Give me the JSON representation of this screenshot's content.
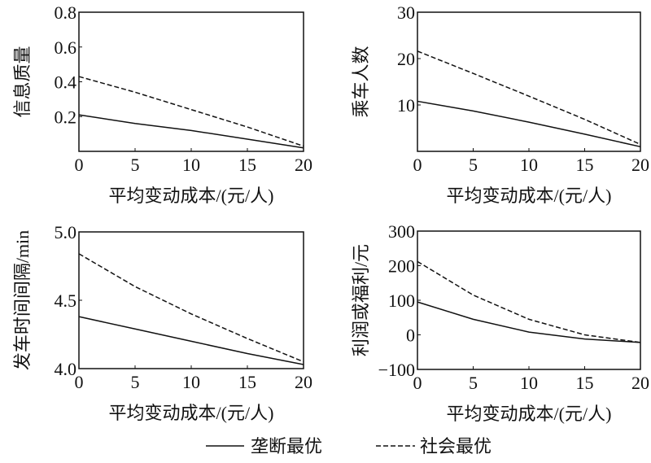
{
  "chart_data": [
    {
      "type": "line",
      "title": "",
      "xlabel": "平均变动成本/(元/人)",
      "ylabel": "信息质量",
      "xlim": [
        0,
        20
      ],
      "ylim": [
        0,
        0.8
      ],
      "xticks": [
        "0",
        "5",
        "10",
        "15",
        "20"
      ],
      "yticks": [
        "0.2",
        "0.4",
        "0.6",
        "0.8"
      ],
      "ytick_values": [
        0.2,
        0.4,
        0.6,
        0.8
      ],
      "x": [
        0,
        5,
        10,
        15,
        20
      ],
      "series": [
        {
          "name": "垄断最优",
          "values": [
            0.21,
            0.16,
            0.12,
            0.07,
            0.02
          ]
        },
        {
          "name": "社会最优",
          "values": [
            0.43,
            0.34,
            0.24,
            0.14,
            0.03
          ]
        }
      ]
    },
    {
      "type": "line",
      "title": "",
      "xlabel": "平均变动成本/(元/人)",
      "ylabel": "乘车人数",
      "xlim": [
        0,
        20
      ],
      "ylim": [
        0,
        30
      ],
      "xticks": [
        "0",
        "5",
        "10",
        "15",
        "20"
      ],
      "yticks": [
        "10",
        "20",
        "30"
      ],
      "ytick_values": [
        10,
        20,
        30
      ],
      "x": [
        0,
        5,
        10,
        15,
        20
      ],
      "series": [
        {
          "name": "垄断最优",
          "values": [
            10.8,
            8.7,
            6.3,
            3.7,
            1.0
          ]
        },
        {
          "name": "社会最优",
          "values": [
            21.6,
            16.8,
            11.9,
            6.9,
            1.5
          ]
        }
      ]
    },
    {
      "type": "line",
      "title": "",
      "xlabel": "平均变动成本/(元/人)",
      "ylabel": "发车时间间隔/min",
      "xlim": [
        0,
        20
      ],
      "ylim": [
        4.0,
        5.0
      ],
      "xticks": [
        "0",
        "5",
        "10",
        "15",
        "20"
      ],
      "yticks": [
        "4.0",
        "4.5",
        "5.0"
      ],
      "ytick_values": [
        4.0,
        4.5,
        5.0
      ],
      "x": [
        0,
        5,
        10,
        15,
        20
      ],
      "series": [
        {
          "name": "垄断最优",
          "values": [
            4.38,
            4.29,
            4.2,
            4.11,
            4.03
          ]
        },
        {
          "name": "社会最优",
          "values": [
            4.84,
            4.6,
            4.4,
            4.22,
            4.05
          ]
        }
      ]
    },
    {
      "type": "line",
      "title": "",
      "xlabel": "平均变动成本/(元/人)",
      "ylabel": "利润或福利/元",
      "xlim": [
        0,
        20
      ],
      "ylim": [
        -100,
        300
      ],
      "xticks": [
        "0",
        "5",
        "10",
        "15",
        "20"
      ],
      "yticks": [
        "-100",
        "0",
        "100",
        "200",
        "300"
      ],
      "ytick_values": [
        -100,
        0,
        100,
        200,
        300
      ],
      "x": [
        0,
        5,
        10,
        15,
        20
      ],
      "series": [
        {
          "name": "垄断最优",
          "values": [
            95,
            45,
            8,
            -12,
            -22
          ]
        },
        {
          "name": "社会最优",
          "values": [
            212,
            115,
            45,
            0,
            -22
          ]
        }
      ]
    }
  ],
  "legend": {
    "placement": "bottom",
    "items": [
      "垄断最优",
      "社会最优"
    ]
  }
}
